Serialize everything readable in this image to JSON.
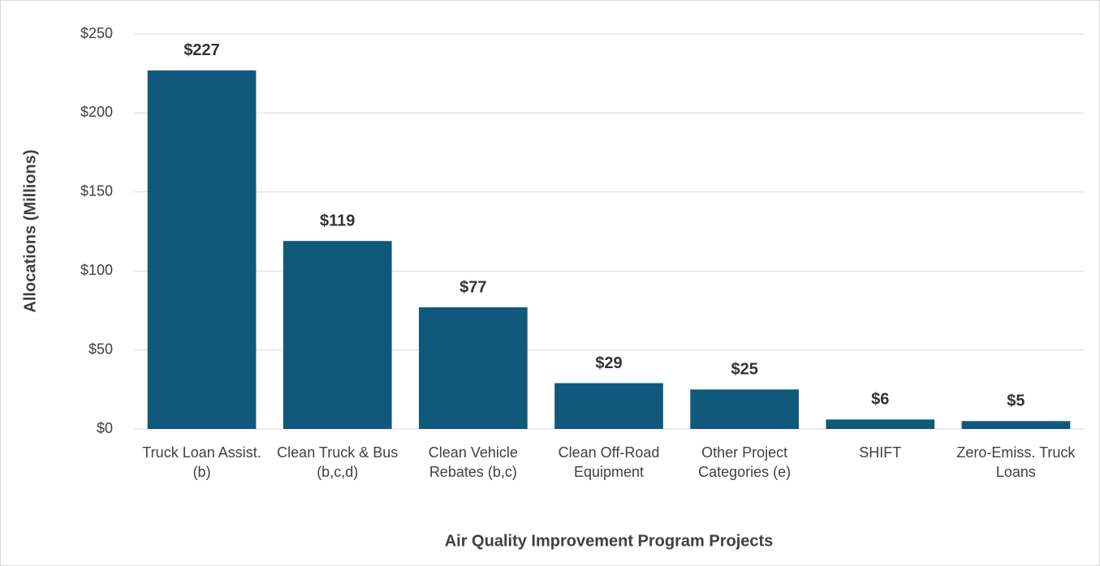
{
  "chart_data": {
    "type": "bar",
    "x_label": "Air Quality Improvement Program Projects",
    "y_label": "Allocations (Millions)",
    "categories": [
      "Truck Loan Assist. (b)",
      "Clean Truck & Bus (b,c,d)",
      "Clean Vehicle Rebates (b,c)",
      "Clean Off-Road Equipment",
      "Other Project Categories (e)",
      "SHIFT",
      "Zero-Emiss. Truck Loans"
    ],
    "values": [
      227,
      119,
      77,
      29,
      25,
      6,
      5
    ],
    "value_labels": [
      "$227",
      "$119",
      "$77",
      "$29",
      "$25",
      "$6",
      "$5"
    ],
    "color": "#10597c",
    "ylim": [
      0,
      250
    ],
    "yticks": [
      {
        "value": 0,
        "label": "$0"
      },
      {
        "value": 50,
        "label": "$50"
      },
      {
        "value": 100,
        "label": "$100"
      },
      {
        "value": 150,
        "label": "$150"
      },
      {
        "value": 200,
        "label": "$200"
      },
      {
        "value": 250,
        "label": "$250"
      }
    ],
    "grid": true
  }
}
